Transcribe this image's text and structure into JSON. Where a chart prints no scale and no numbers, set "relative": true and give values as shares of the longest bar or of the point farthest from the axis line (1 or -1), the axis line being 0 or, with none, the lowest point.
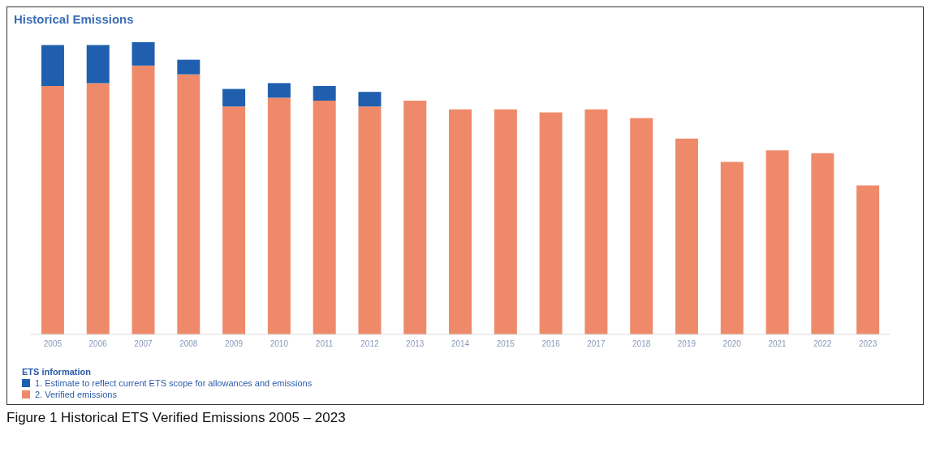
{
  "chart_data": {
    "type": "bar",
    "title": "Historical Emissions",
    "categories": [
      "2005",
      "2006",
      "2007",
      "2008",
      "2009",
      "2010",
      "2011",
      "2012",
      "2013",
      "2014",
      "2015",
      "2016",
      "2017",
      "2018",
      "2019",
      "2020",
      "2021",
      "2022",
      "2023"
    ],
    "relative": true,
    "stacked": true,
    "legend_title": "ETS information",
    "legend": "bottom left",
    "series": [
      {
        "name": "2. Verified emissions",
        "color": "#ee8a6a",
        "values": [
          0.85,
          0.86,
          0.92,
          0.89,
          0.78,
          0.81,
          0.8,
          0.78,
          0.8,
          0.77,
          0.77,
          0.76,
          0.77,
          0.74,
          0.67,
          0.59,
          0.63,
          0.62,
          0.51
        ]
      },
      {
        "name": "1. Estimate to reflect current ETS scope for allowances and emissions",
        "color": "#1f5fae",
        "values": [
          0.14,
          0.13,
          0.08,
          0.05,
          0.06,
          0.05,
          0.05,
          0.05,
          null,
          null,
          null,
          null,
          null,
          null,
          null,
          null,
          null,
          null,
          null
        ]
      }
    ],
    "annotations": [
      "Figure 1 Historical ETS Verified Emissions 2005 – 2023"
    ]
  }
}
